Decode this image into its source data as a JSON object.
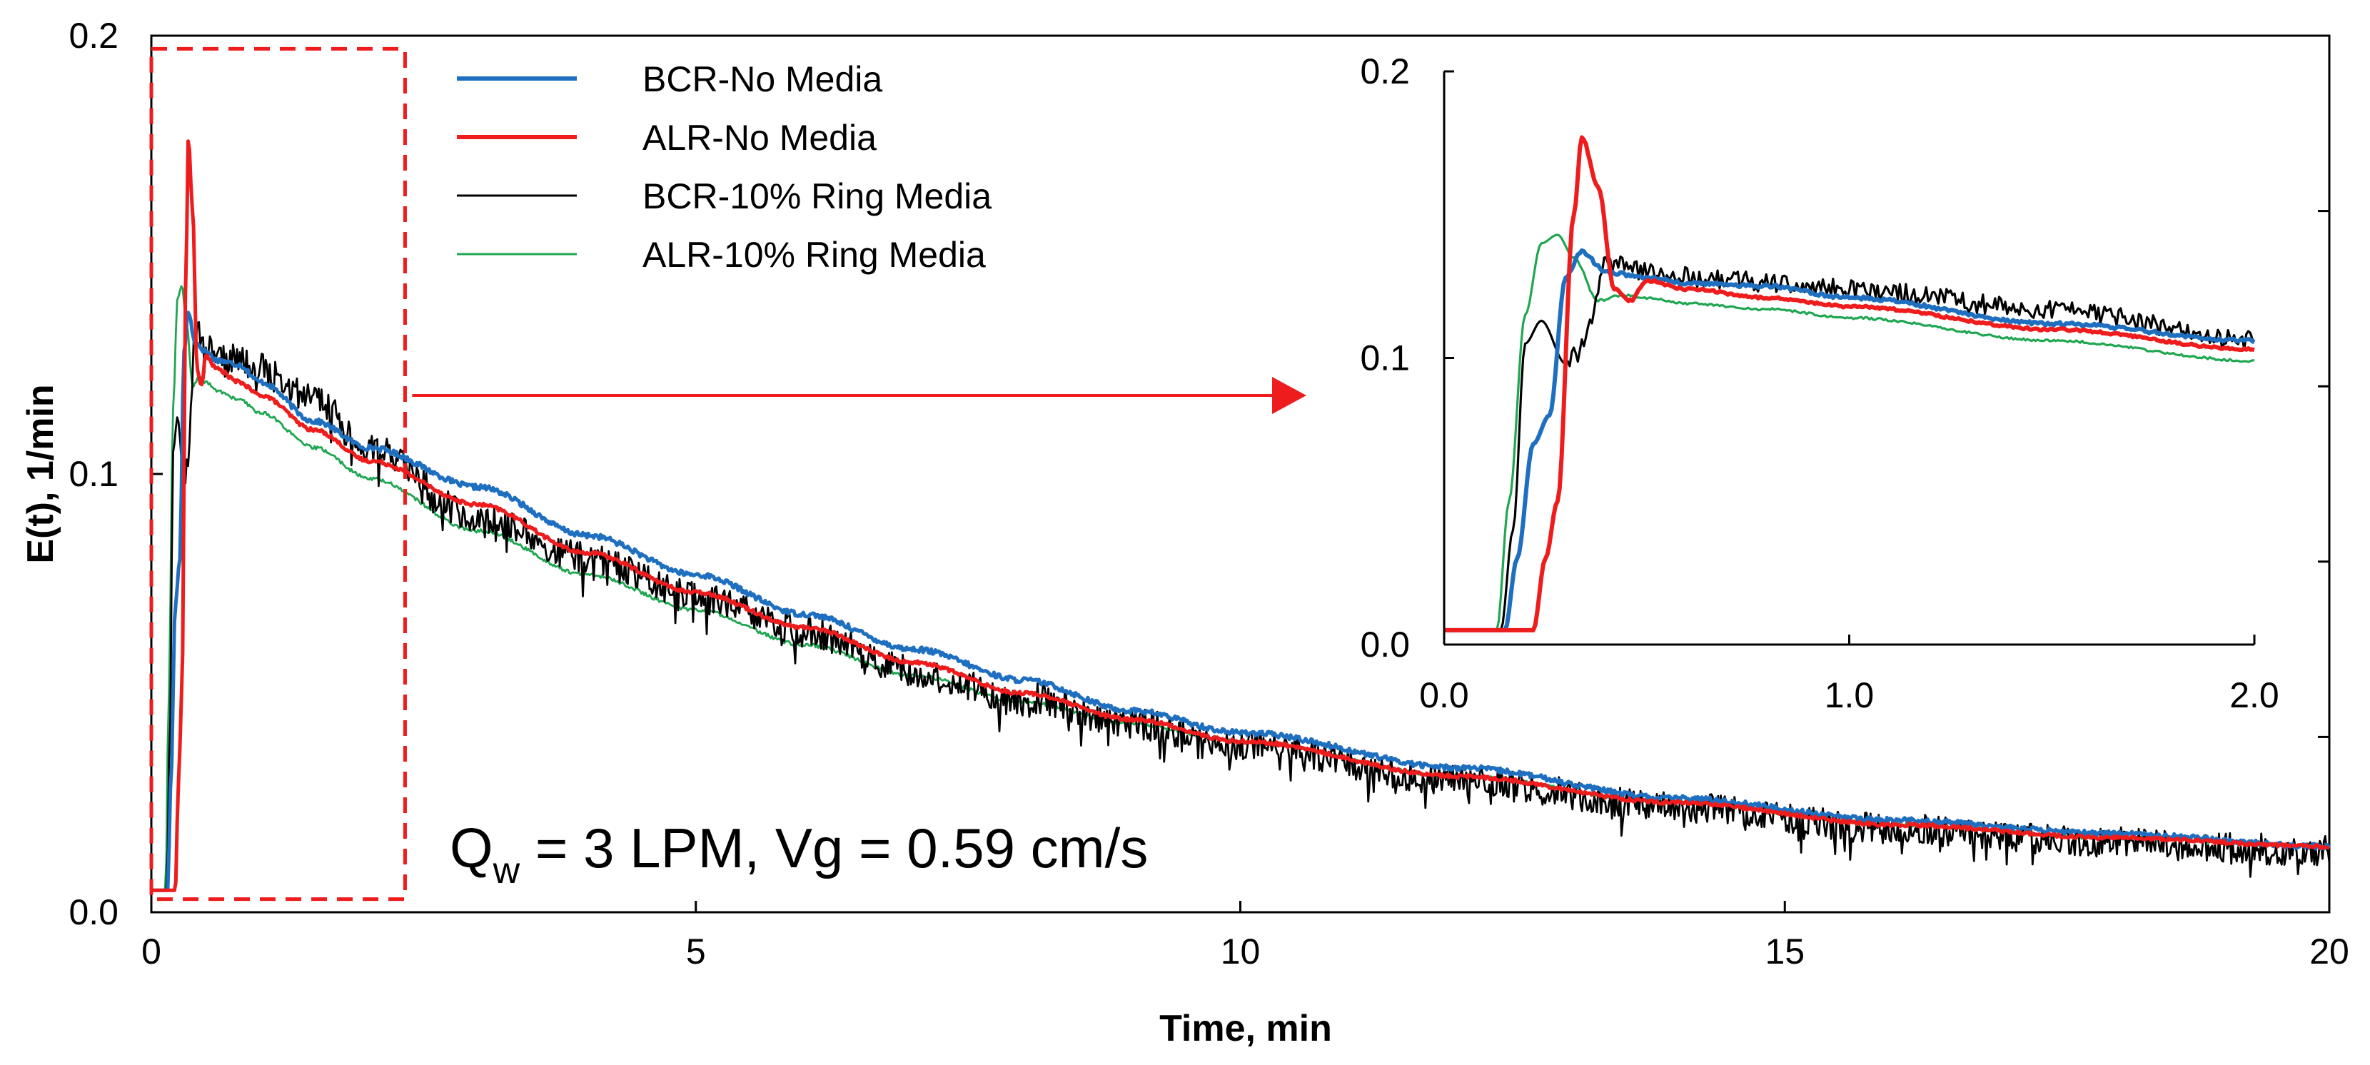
{
  "colors": {
    "bcr_no_media": "#1f6fc1",
    "alr_no_media": "#ee1c1c",
    "bcr_ring": "#000000",
    "alr_ring": "#1fa650",
    "zoom_box": "#ee1c1c"
  },
  "chart_data": [
    {
      "id": "main",
      "type": "line",
      "xlabel": "Time, min",
      "ylabel": "E(t), 1/min",
      "xlim": [
        0,
        20
      ],
      "ylim": [
        0,
        0.2
      ],
      "xticks": [
        0,
        5,
        10,
        15,
        20
      ],
      "xtick_labels": [
        "0",
        "5",
        "10",
        "15",
        "20"
      ],
      "yticks": [
        0,
        0.1,
        0.2
      ],
      "ytick_labels": [
        "0.0",
        "0.1",
        "0.2"
      ],
      "legend_position": "top-left",
      "annotation": {
        "q": "Q",
        "sub": "w",
        "rest": " = 3 LPM, Vg = 0.59 cm/s"
      },
      "zoom_region": {
        "x": [
          0,
          2.33
        ],
        "y": [
          0.003,
          0.197
        ]
      },
      "series": [
        {
          "name": "BCR-No Media",
          "color_key": "bcr_no_media",
          "noise": 0.0006,
          "x": [
            0,
            0.15,
            0.18,
            0.22,
            0.26,
            0.3,
            0.34,
            0.4,
            0.5,
            0.6,
            0.8,
            1.0,
            1.5,
            2.0,
            3,
            4,
            5,
            6,
            7,
            8,
            9,
            10,
            12,
            14,
            16,
            18,
            20
          ],
          "y": [
            0.005,
            0.005,
            0.03,
            0.07,
            0.08,
            0.128,
            0.137,
            0.13,
            0.128,
            0.126,
            0.125,
            0.121,
            0.112,
            0.106,
            0.097,
            0.086,
            0.077,
            0.068,
            0.06,
            0.053,
            0.046,
            0.041,
            0.033,
            0.026,
            0.021,
            0.018,
            0.015
          ]
        },
        {
          "name": "ALR-No Media",
          "color_key": "alr_no_media",
          "noise": 0.0004,
          "x": [
            0,
            0.22,
            0.25,
            0.28,
            0.32,
            0.34,
            0.38,
            0.42,
            0.46,
            0.5,
            0.6,
            0.8,
            1.0,
            1.5,
            2.0,
            3,
            4,
            5,
            6,
            7,
            8,
            9,
            10,
            12,
            14,
            16,
            18,
            20
          ],
          "y": [
            0.005,
            0.005,
            0.03,
            0.05,
            0.15,
            0.177,
            0.16,
            0.124,
            0.12,
            0.127,
            0.124,
            0.121,
            0.118,
            0.11,
            0.103,
            0.093,
            0.082,
            0.073,
            0.065,
            0.057,
            0.05,
            0.044,
            0.039,
            0.031,
            0.025,
            0.02,
            0.017,
            0.015
          ]
        },
        {
          "name": "BCR-10% Ring Media",
          "color_key": "bcr_ring",
          "noise": 0.0035,
          "x": [
            0,
            0.14,
            0.17,
            0.2,
            0.24,
            0.3,
            0.34,
            0.4,
            0.5,
            0.7,
            1.0,
            1.5,
            2.0,
            3,
            4,
            5,
            6,
            7,
            8,
            9,
            10,
            12,
            14,
            16,
            18,
            20
          ],
          "y": [
            0.005,
            0.005,
            0.04,
            0.105,
            0.113,
            0.098,
            0.103,
            0.133,
            0.13,
            0.127,
            0.124,
            0.117,
            0.106,
            0.09,
            0.081,
            0.072,
            0.064,
            0.055,
            0.049,
            0.043,
            0.038,
            0.03,
            0.024,
            0.019,
            0.016,
            0.014
          ]
        },
        {
          "name": "ALR-10% Ring Media",
          "color_key": "alr_ring",
          "noise": 0.0004,
          "x": [
            0,
            0.13,
            0.16,
            0.2,
            0.24,
            0.28,
            0.32,
            0.38,
            0.44,
            0.5,
            0.6,
            0.8,
            1.0,
            1.5,
            2.0,
            3,
            4,
            5,
            6,
            7,
            8,
            9,
            10,
            12,
            14,
            16,
            18,
            20
          ],
          "y": [
            0.005,
            0.005,
            0.05,
            0.115,
            0.14,
            0.143,
            0.135,
            0.12,
            0.122,
            0.121,
            0.119,
            0.117,
            0.114,
            0.106,
            0.099,
            0.087,
            0.077,
            0.069,
            0.061,
            0.054,
            0.048,
            0.043,
            0.039,
            0.031,
            0.025,
            0.02,
            0.017,
            0.015
          ]
        }
      ]
    },
    {
      "id": "inset",
      "type": "line",
      "xlim": [
        0,
        2.0
      ],
      "ylim": [
        0,
        0.2
      ],
      "xticks": [
        0,
        1.0,
        2.0
      ],
      "xtick_labels": [
        "0.0",
        "1.0",
        "2.0"
      ],
      "yticks": [
        0,
        0.1,
        0.2
      ],
      "ytick_labels": [
        "0.0",
        "0.1",
        "0.2"
      ],
      "series_source": "main"
    }
  ]
}
